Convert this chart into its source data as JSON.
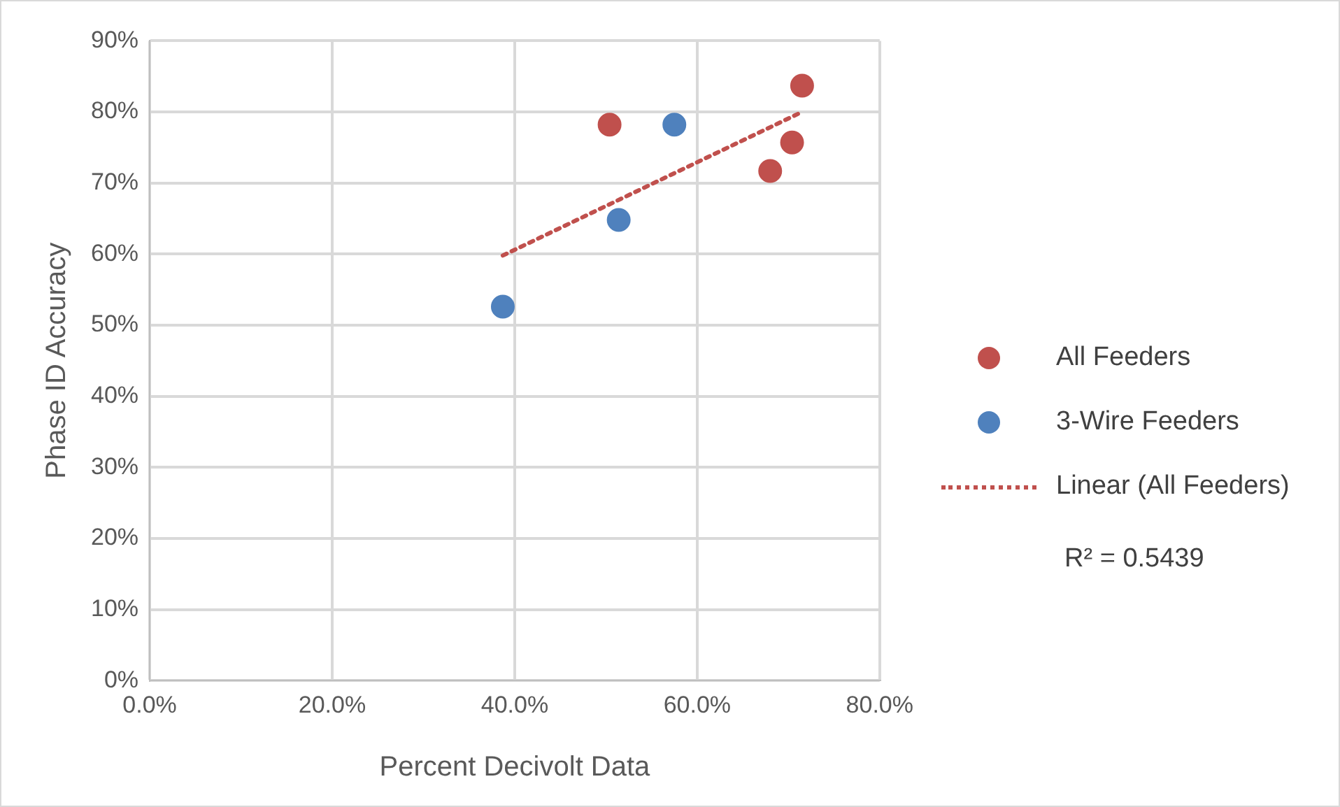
{
  "chart_data": {
    "type": "scatter",
    "xlabel": "Percent Decivolt Data",
    "ylabel": "Phase ID Accuracy",
    "marker": "circle",
    "grid": true,
    "legend": "right",
    "xlim": [
      0,
      80
    ],
    "xticks": [
      {
        "value": 0,
        "label": "0.0%"
      },
      {
        "value": 20,
        "label": "20.0%"
      },
      {
        "value": 40,
        "label": "40.0%"
      },
      {
        "value": 60,
        "label": "60.0%"
      },
      {
        "value": 80,
        "label": "80.0%"
      }
    ],
    "ylim": [
      0,
      90
    ],
    "yticks": [
      {
        "value": 0,
        "label": "0%"
      },
      {
        "value": 10,
        "label": "10%"
      },
      {
        "value": 20,
        "label": "20%"
      },
      {
        "value": 30,
        "label": "30%"
      },
      {
        "value": 40,
        "label": "40%"
      },
      {
        "value": 50,
        "label": "50%"
      },
      {
        "value": 60,
        "label": "60%"
      },
      {
        "value": 70,
        "label": "70%"
      },
      {
        "value": 80,
        "label": "80%"
      },
      {
        "value": 90,
        "label": "90%"
      }
    ],
    "series": [
      {
        "name": "All Feeders",
        "color": "#c0504d",
        "x": [
          50.4,
          71.5,
          70.4,
          68.0
        ],
        "values": [
          78.2,
          83.7,
          75.7,
          71.7
        ]
      },
      {
        "name": "3-Wire Feeders",
        "color": "#4f81bd",
        "x": [
          38.7,
          51.4,
          57.5
        ],
        "values": [
          52.6,
          64.8,
          78.2
        ]
      },
      {
        "name": "Linear (All Feeders)",
        "type": "line",
        "color": "#c0504d",
        "marker": "none",
        "line_style": "dotted",
        "x": [
          38.7,
          71.5
        ],
        "values": [
          59.8,
          80.0
        ]
      }
    ],
    "annotations": [
      "R² = 0.5439"
    ]
  }
}
